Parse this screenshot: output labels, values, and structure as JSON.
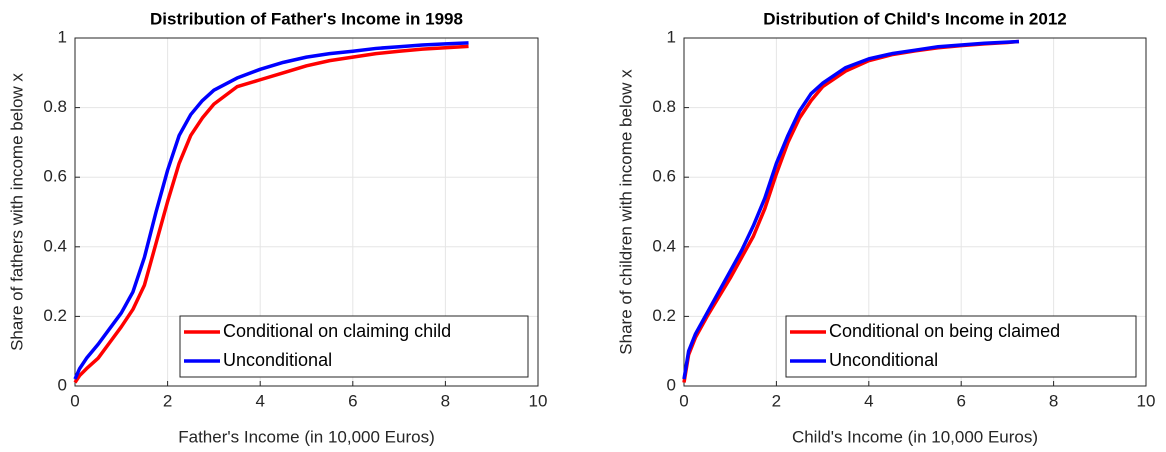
{
  "chart_data": [
    {
      "type": "line",
      "title": "Distribution of Father's Income in 1998",
      "x_label": "Father's Income (in 10,000 Euros)",
      "y_label": "Share of fathers with income below x",
      "x": [
        0,
        0.1,
        0.25,
        0.5,
        0.75,
        1,
        1.25,
        1.5,
        1.75,
        2,
        2.25,
        2.5,
        2.75,
        3,
        3.5,
        4,
        4.5,
        5,
        5.5,
        6,
        6.5,
        7,
        7.5,
        8,
        8.5
      ],
      "series": [
        {
          "name": "Conditional on claiming child",
          "color": "#ff0000",
          "values": [
            0.01,
            0.03,
            0.05,
            0.08,
            0.125,
            0.17,
            0.22,
            0.29,
            0.41,
            0.53,
            0.64,
            0.72,
            0.77,
            0.81,
            0.86,
            0.88,
            0.9,
            0.92,
            0.935,
            0.945,
            0.955,
            0.962,
            0.968,
            0.972,
            0.976
          ]
        },
        {
          "name": "Unconditional",
          "color": "#0000ff",
          "values": [
            0.02,
            0.05,
            0.08,
            0.12,
            0.165,
            0.21,
            0.27,
            0.37,
            0.5,
            0.62,
            0.72,
            0.78,
            0.82,
            0.85,
            0.885,
            0.91,
            0.93,
            0.945,
            0.955,
            0.962,
            0.97,
            0.975,
            0.98,
            0.983,
            0.986
          ]
        }
      ],
      "xlim": [
        0,
        10
      ],
      "ylim": [
        0,
        1
      ],
      "xticks": [
        0,
        2,
        4,
        6,
        8,
        10
      ],
      "yticks": [
        0,
        0.2,
        0.4,
        0.6,
        0.8,
        1
      ],
      "grid": true,
      "legend": "lower right"
    },
    {
      "type": "line",
      "title": "Distribution of Child's Income in 2012",
      "x_label": "Child's Income (in 10,000 Euros)",
      "y_label": "Share of children with income below x",
      "x": [
        0,
        0.1,
        0.25,
        0.5,
        0.75,
        1,
        1.25,
        1.5,
        1.75,
        2,
        2.25,
        2.5,
        2.75,
        3,
        3.5,
        4,
        4.5,
        5,
        5.5,
        6,
        6.5,
        7,
        7.25
      ],
      "series": [
        {
          "name": "Conditional on being claimed",
          "color": "#ff0000",
          "values": [
            0.01,
            0.09,
            0.14,
            0.2,
            0.255,
            0.31,
            0.37,
            0.43,
            0.51,
            0.61,
            0.7,
            0.77,
            0.82,
            0.86,
            0.905,
            0.935,
            0.952,
            0.963,
            0.972,
            0.978,
            0.983,
            0.987,
            0.99
          ]
        },
        {
          "name": "Unconditional",
          "color": "#0000ff",
          "values": [
            0.02,
            0.1,
            0.15,
            0.21,
            0.27,
            0.33,
            0.39,
            0.46,
            0.54,
            0.64,
            0.72,
            0.79,
            0.84,
            0.87,
            0.915,
            0.94,
            0.955,
            0.965,
            0.975,
            0.98,
            0.985,
            0.988,
            0.99
          ]
        }
      ],
      "xlim": [
        0,
        10
      ],
      "ylim": [
        0,
        1
      ],
      "xticks": [
        0,
        2,
        4,
        6,
        8,
        10
      ],
      "yticks": [
        0,
        0.2,
        0.4,
        0.6,
        0.8,
        1
      ],
      "grid": true,
      "legend": "lower right"
    }
  ]
}
